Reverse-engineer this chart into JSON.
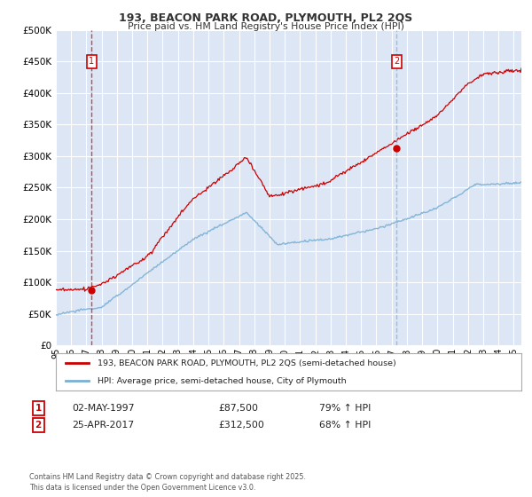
{
  "title_line1": "193, BEACON PARK ROAD, PLYMOUTH, PL2 2QS",
  "title_line2": "Price paid vs. HM Land Registry's House Price Index (HPI)",
  "legend_label1": "193, BEACON PARK ROAD, PLYMOUTH, PL2 2QS (semi-detached house)",
  "legend_label2": "HPI: Average price, semi-detached house, City of Plymouth",
  "transaction1": {
    "num": "1",
    "date": "02-MAY-1997",
    "price": "£87,500",
    "hpi": "79% ↑ HPI",
    "year": 1997.35,
    "value": 87500
  },
  "transaction2": {
    "num": "2",
    "date": "25-APR-2017",
    "price": "£312,500",
    "hpi": "68% ↑ HPI",
    "year": 2017.32,
    "value": 312500
  },
  "footnote": "Contains HM Land Registry data © Crown copyright and database right 2025.\nThis data is licensed under the Open Government Licence v3.0.",
  "ylim": [
    0,
    500000
  ],
  "xlim_start": 1995.0,
  "xlim_end": 2025.5,
  "yticks": [
    0,
    50000,
    100000,
    150000,
    200000,
    250000,
    300000,
    350000,
    400000,
    450000,
    500000
  ],
  "background_color": "#dce6f5",
  "line1_color": "#cc0000",
  "line2_color": "#7ab0d4",
  "vline1_color": "#cc0000",
  "vline2_color": "#7ab0d4",
  "grid_color": "#ffffff",
  "title_color": "#333333",
  "fig_bg": "#ffffff"
}
